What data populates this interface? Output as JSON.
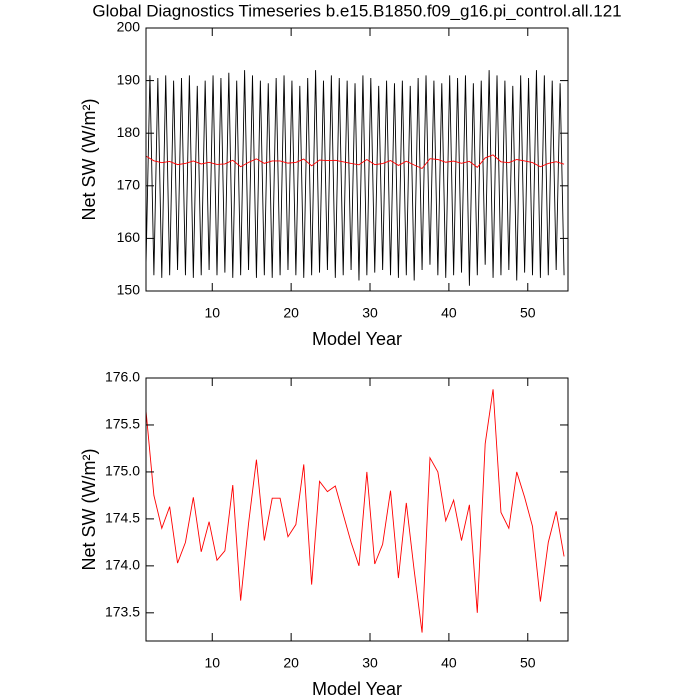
{
  "chart_data": [
    {
      "type": "line",
      "title": "Global Diagnostics Timeseries b.e15.B1850.f09_g16.pi_control.all.121",
      "xlabel": "Model Year",
      "ylabel": "Net SW (W/m²)",
      "xlim": [
        1.6,
        55.1
      ],
      "xticks": [
        10,
        20,
        30,
        40,
        50
      ],
      "ylim": [
        150,
        200
      ],
      "yticks": [
        150,
        160,
        170,
        180,
        190,
        200
      ],
      "series": [
        {
          "color": "#000000",
          "x": [
            1.6,
            2.1,
            2.6,
            3.1,
            3.6,
            4.1,
            4.6,
            5.1,
            5.6,
            6.1,
            6.6,
            7.1,
            7.6,
            8.1,
            8.6,
            9.1,
            9.6,
            10.1,
            10.6,
            11.1,
            11.6,
            12.1,
            12.6,
            13.1,
            13.6,
            14.1,
            14.6,
            15.1,
            15.6,
            16.1,
            16.6,
            17.1,
            17.6,
            18.1,
            18.6,
            19.1,
            19.6,
            20.1,
            20.6,
            21.1,
            21.6,
            22.1,
            22.6,
            23.1,
            23.6,
            24.1,
            24.6,
            25.1,
            25.6,
            26.1,
            26.6,
            27.1,
            27.6,
            28.1,
            28.6,
            29.1,
            29.6,
            30.1,
            30.6,
            31.1,
            31.6,
            32.1,
            32.6,
            33.1,
            33.6,
            34.1,
            34.6,
            35.1,
            35.6,
            36.1,
            36.6,
            37.1,
            37.6,
            38.1,
            38.6,
            39.1,
            39.6,
            40.1,
            40.6,
            41.1,
            41.6,
            42.1,
            42.6,
            43.1,
            43.6,
            44.1,
            44.6,
            45.1,
            45.6,
            46.1,
            46.6,
            47.1,
            47.6,
            48.1,
            48.6,
            49.1,
            49.6,
            50.1,
            50.6,
            51.1,
            51.6,
            52.1,
            52.6,
            53.1,
            53.6,
            54.1,
            54.6
          ],
          "values": [
            155,
            191,
            153,
            190.5,
            152.5,
            191,
            153,
            190,
            154,
            190.5,
            153,
            191,
            152.5,
            189,
            153,
            190,
            154,
            191,
            153,
            190.5,
            153.5,
            191.5,
            152.5,
            190,
            153,
            192,
            154,
            191,
            152.5,
            190,
            153,
            189.5,
            152.5,
            190.5,
            153,
            191,
            154,
            190,
            153,
            189,
            152.5,
            190.5,
            153,
            192,
            153.5,
            190,
            154,
            191,
            152.5,
            190.5,
            153,
            190,
            154,
            189.5,
            152,
            191,
            153,
            190.5,
            153.5,
            189,
            154,
            190,
            153,
            189.5,
            152.5,
            190,
            153,
            189,
            152,
            190.5,
            154,
            191,
            155,
            190,
            153,
            189.5,
            152.5,
            191,
            153,
            190.5,
            153.5,
            191,
            151,
            189.5,
            153,
            190,
            155,
            192,
            152.5,
            191,
            153,
            190,
            154,
            189,
            152,
            191,
            153.5,
            190.5,
            153,
            192,
            152.5,
            191,
            153,
            190,
            154,
            189.5,
            153
          ]
        },
        {
          "color": "#ff0000",
          "x": [
            1.6,
            2.6,
            3.6,
            4.6,
            5.6,
            6.6,
            7.6,
            8.6,
            9.6,
            10.6,
            11.6,
            12.6,
            13.6,
            14.6,
            15.6,
            16.6,
            17.6,
            18.6,
            19.6,
            20.6,
            21.6,
            22.6,
            23.6,
            24.6,
            25.6,
            26.6,
            27.6,
            28.6,
            29.6,
            30.6,
            31.6,
            32.6,
            33.6,
            34.6,
            35.6,
            36.6,
            37.6,
            38.6,
            39.6,
            40.6,
            41.6,
            42.6,
            43.6,
            44.6,
            45.6,
            46.6,
            47.6,
            48.6,
            49.6,
            50.6,
            51.6,
            52.6,
            53.6,
            54.6
          ],
          "values": [
            175.65,
            174.75,
            174.4,
            174.63,
            174.03,
            174.25,
            174.73,
            174.15,
            174.47,
            174.06,
            174.16,
            174.86,
            173.63,
            174.45,
            175.13,
            174.27,
            174.72,
            174.72,
            174.31,
            174.44,
            175.08,
            173.8,
            174.9,
            174.79,
            174.85,
            174.55,
            174.25,
            174.0,
            175.0,
            174.02,
            174.23,
            174.8,
            173.87,
            174.67,
            173.95,
            173.29,
            175.15,
            175.0,
            174.48,
            174.7,
            174.27,
            174.65,
            173.5,
            175.3,
            175.88,
            174.57,
            174.4,
            175.0,
            174.73,
            174.42,
            173.62,
            174.25,
            174.58,
            174.1
          ]
        }
      ]
    },
    {
      "type": "line",
      "xlabel": "Model Year",
      "ylabel": "Net SW (W/m²)",
      "xlim": [
        1.6,
        55.1
      ],
      "xticks": [
        10,
        20,
        30,
        40,
        50
      ],
      "ylim": [
        173.2,
        176.0
      ],
      "yticks": [
        173.5,
        {
          "value": 174,
          "label": "174.0"
        },
        174.5,
        {
          "value": 175,
          "label": "175.0"
        },
        175.5,
        {
          "value": 176,
          "label": "176.0"
        }
      ],
      "series": [
        {
          "color": "#ff0000",
          "x": [
            1.6,
            2.6,
            3.6,
            4.6,
            5.6,
            6.6,
            7.6,
            8.6,
            9.6,
            10.6,
            11.6,
            12.6,
            13.6,
            14.6,
            15.6,
            16.6,
            17.6,
            18.6,
            19.6,
            20.6,
            21.6,
            22.6,
            23.6,
            24.6,
            25.6,
            26.6,
            27.6,
            28.6,
            29.6,
            30.6,
            31.6,
            32.6,
            33.6,
            34.6,
            35.6,
            36.6,
            37.6,
            38.6,
            39.6,
            40.6,
            41.6,
            42.6,
            43.6,
            44.6,
            45.6,
            46.6,
            47.6,
            48.6,
            49.6,
            50.6,
            51.6,
            52.6,
            53.6,
            54.6
          ],
          "values": [
            175.65,
            174.75,
            174.4,
            174.63,
            174.03,
            174.25,
            174.73,
            174.15,
            174.47,
            174.06,
            174.16,
            174.86,
            173.63,
            174.45,
            175.13,
            174.27,
            174.72,
            174.72,
            174.31,
            174.44,
            175.08,
            173.8,
            174.9,
            174.79,
            174.85,
            174.55,
            174.25,
            174.0,
            175.0,
            174.02,
            174.23,
            174.8,
            173.87,
            174.67,
            173.95,
            173.29,
            175.15,
            175.0,
            174.48,
            174.7,
            174.27,
            174.65,
            173.5,
            175.3,
            175.88,
            174.57,
            174.4,
            175.0,
            174.73,
            174.42,
            173.62,
            174.25,
            174.58,
            174.1
          ]
        }
      ]
    }
  ]
}
